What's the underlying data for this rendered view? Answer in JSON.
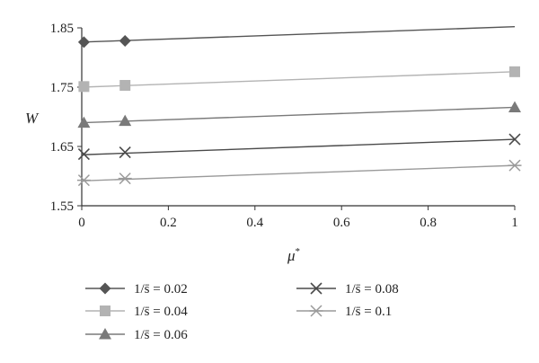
{
  "chart_data": {
    "type": "line",
    "xlabel": "μ*",
    "ylabel": "W",
    "xlim": [
      0,
      1
    ],
    "ylim": [
      1.55,
      1.85
    ],
    "x_ticks": [
      "0",
      "0.2",
      "0.4",
      "0.6",
      "0.8",
      "1"
    ],
    "y_ticks": [
      "1.55",
      "1.65",
      "1.75",
      "1.85"
    ],
    "grid": false,
    "legend_position": "bottom",
    "series": [
      {
        "name": "1/s̄ = 0.02",
        "color": "#555555",
        "marker": "diamond",
        "line": [
          [
            0,
            1.826
          ],
          [
            1,
            1.852
          ]
        ],
        "points": [
          [
            0.005,
            1.826
          ],
          [
            0.1,
            1.828
          ]
        ]
      },
      {
        "name": "1/s̄ = 0.04",
        "color": "#b3b3b3",
        "marker": "square",
        "line": [
          [
            0,
            1.75
          ],
          [
            1,
            1.776
          ]
        ],
        "points": [
          [
            0.005,
            1.751
          ],
          [
            0.1,
            1.753
          ],
          [
            1,
            1.776
          ]
        ]
      },
      {
        "name": "1/s̄ = 0.06",
        "color": "#7a7a7a",
        "marker": "triangle",
        "line": [
          [
            0,
            1.69
          ],
          [
            1,
            1.716
          ]
        ],
        "points": [
          [
            0.005,
            1.69
          ],
          [
            0.1,
            1.693
          ],
          [
            1,
            1.716
          ]
        ]
      },
      {
        "name": "1/s̄ = 0.08",
        "color": "#4a4a4a",
        "marker": "x",
        "line": [
          [
            0,
            1.636
          ],
          [
            1,
            1.662
          ]
        ],
        "points": [
          [
            0.005,
            1.637
          ],
          [
            0.1,
            1.64
          ],
          [
            1,
            1.662
          ]
        ]
      },
      {
        "name": "1/s̄ = 0.1",
        "color": "#9a9a9a",
        "marker": "asterisk",
        "line": [
          [
            0,
            1.592
          ],
          [
            1,
            1.618
          ]
        ],
        "points": [
          [
            0.005,
            1.593
          ],
          [
            0.1,
            1.596
          ],
          [
            1,
            1.618
          ]
        ]
      }
    ]
  }
}
